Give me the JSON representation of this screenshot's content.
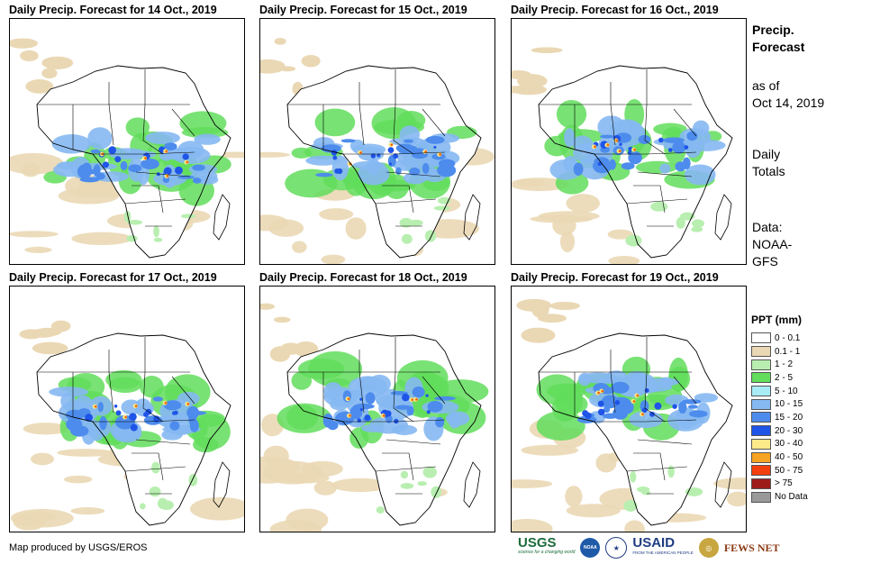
{
  "panels": [
    {
      "title": "Daily Precip. Forecast for 14 Oct., 2019"
    },
    {
      "title": "Daily Precip. Forecast for 15 Oct., 2019"
    },
    {
      "title": "Daily Precip. Forecast for 16 Oct., 2019"
    },
    {
      "title": "Daily Precip. Forecast for 17 Oct., 2019"
    },
    {
      "title": "Daily Precip. Forecast for 18 Oct., 2019"
    },
    {
      "title": "Daily Precip. Forecast for 19 Oct., 2019"
    }
  ],
  "side": {
    "title_line1": "Precip.",
    "title_line2": "Forecast",
    "asof_line1": "as of",
    "asof_line2": "Oct 14, 2019",
    "totals_line1": "Daily",
    "totals_line2": "Totals",
    "data_line1": "Data:",
    "data_line2": "NOAA-",
    "data_line3": "GFS"
  },
  "legend": {
    "title": "PPT (mm)",
    "items": [
      {
        "label": "0 - 0.1",
        "color": "#ffffff"
      },
      {
        "label": "0.1 - 1",
        "color": "#ead8b4"
      },
      {
        "label": "1 - 2",
        "color": "#b8efb0"
      },
      {
        "label": "2 - 5",
        "color": "#62dd5c"
      },
      {
        "label": "5 - 10",
        "color": "#a8ecf8"
      },
      {
        "label": "10 - 15",
        "color": "#86b8f2"
      },
      {
        "label": "15 - 20",
        "color": "#4d8cec"
      },
      {
        "label": "20 - 30",
        "color": "#1f54e8"
      },
      {
        "label": "30 - 40",
        "color": "#fce98a"
      },
      {
        "label": "40 - 50",
        "color": "#f7a323"
      },
      {
        "label": "50 - 75",
        "color": "#f2400e"
      },
      {
        "label": "> 75",
        "color": "#9e1b1b"
      },
      {
        "label": "No Data",
        "color": "#999999"
      }
    ]
  },
  "credit": "Map produced by USGS/EROS",
  "logos": {
    "usgs": "USGS",
    "usgs_tagline": "science for a changing world",
    "noaa": "NOAA",
    "usaid": "USAID",
    "usaid_tagline": "FROM THE AMERICAN PEOPLE",
    "fewsnet": "FEWS NET"
  }
}
